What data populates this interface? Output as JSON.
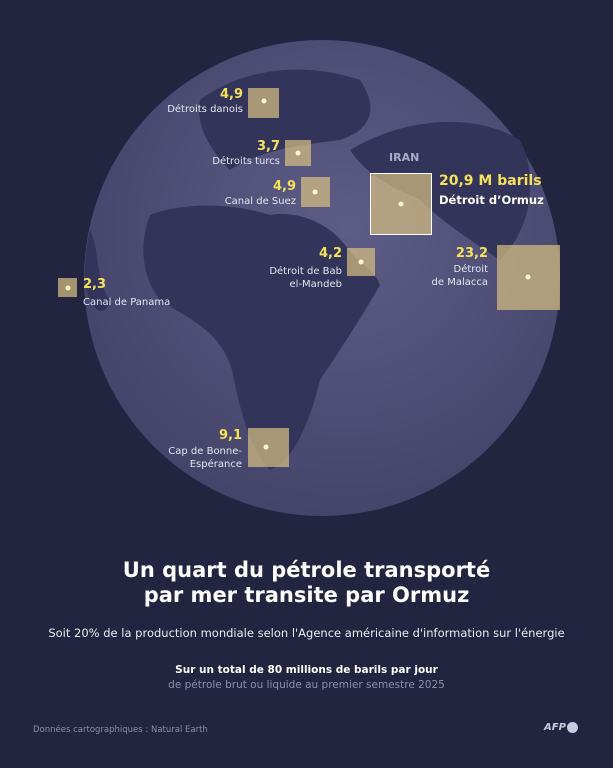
{
  "colors": {
    "background": "#23243f",
    "globe": "#4b4b74",
    "land": "#33345a",
    "box": "#d6be82",
    "value": "#f6e15a"
  },
  "map": {
    "country_label": "IRAN",
    "straits": [
      {
        "name": "Détroits danois",
        "value": "4,9"
      },
      {
        "name": "Détroits turcs",
        "value": "3,7"
      },
      {
        "name": "Canal de Suez",
        "value": "4,9"
      },
      {
        "name": "Détroit d’Ormuz",
        "value": "20,9 M barils"
      },
      {
        "name_lines": [
          "Détroit de Bab",
          "el-Mandeb"
        ],
        "value": "4,2"
      },
      {
        "name_lines": [
          "Détroit",
          "de Malacca"
        ],
        "value": "23,2"
      },
      {
        "name": "Canal de Panama",
        "value": "2,3"
      },
      {
        "name_lines": [
          "Cap de Bonne-",
          "Espérance"
        ],
        "value": "9,1"
      }
    ]
  },
  "title_lines": [
    "Un quart du pétrole transporté",
    "par mer transite par Ormuz"
  ],
  "subtitle": "Soit 20% de la production mondiale selon l'Agence américaine d'information sur l'énergie",
  "note_bold": "Sur un total de 80 millions de barils par jour",
  "note_light": "de pétrole brut ou liquide au premier semestre 2025",
  "source": "Données cartographiques : Natural Earth",
  "logo": "AFP"
}
